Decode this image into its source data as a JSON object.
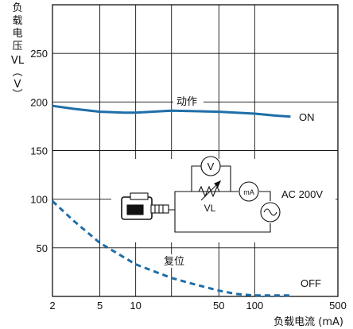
{
  "chart_data": {
    "type": "line",
    "xlabel": "负载电流 (mA)",
    "ylabel_chars": [
      "负",
      "载",
      "电",
      "压",
      "VL",
      "︵",
      "V",
      "︶"
    ],
    "x_scale": "log",
    "xlim": [
      2,
      500
    ],
    "ylim": [
      0,
      300
    ],
    "x_ticks": [
      2,
      5,
      10,
      50,
      100,
      500
    ],
    "x_tick_labels": [
      "2",
      "5",
      "10",
      "50",
      "100",
      "500"
    ],
    "y_ticks": [
      50,
      100,
      150,
      200,
      250
    ],
    "y_tick_labels": [
      "50",
      "100",
      "150",
      "200",
      "250"
    ],
    "x_gridlines": [
      5,
      10,
      20,
      50,
      100
    ],
    "y_gridlines": [
      50,
      100,
      150,
      200,
      250
    ],
    "grid": true,
    "series": [
      {
        "name": "ON",
        "annotation": "动作",
        "style": "solid",
        "color": "#1f6ea8",
        "x": [
          2,
          3,
          5,
          8,
          10,
          20,
          50,
          100,
          150,
          200
        ],
        "y": [
          196,
          193,
          190,
          189,
          189,
          191,
          190,
          188,
          186,
          185
        ]
      },
      {
        "name": "OFF",
        "annotation": "复位",
        "style": "dashed",
        "color": "#1f6ea8",
        "x": [
          2,
          3,
          5,
          10,
          20,
          30,
          50,
          70,
          100,
          150,
          200
        ],
        "y": [
          98,
          78,
          55,
          33,
          19,
          13,
          6,
          2.5,
          1,
          1,
          1
        ]
      }
    ]
  },
  "inset": {
    "voltmeter": "V",
    "ammeter": "mA",
    "resistor_label": "VL",
    "supply_label": "AC 200V"
  }
}
